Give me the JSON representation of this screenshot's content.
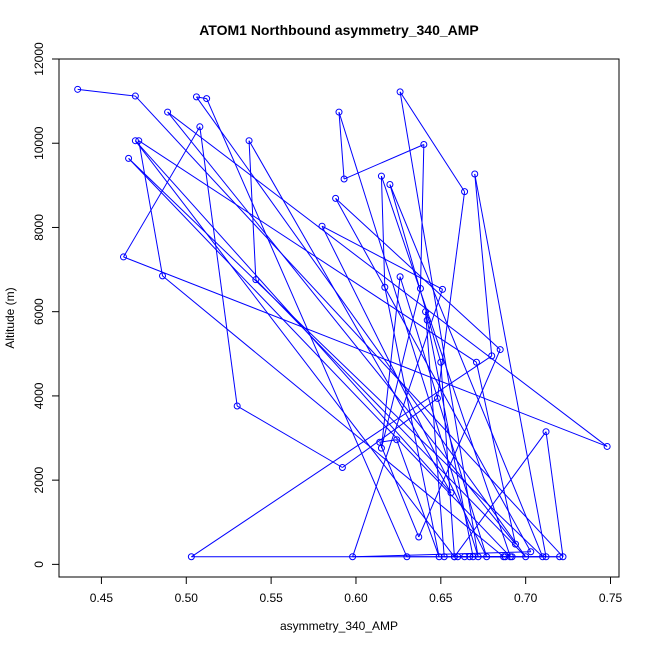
{
  "chart_data": {
    "type": "line",
    "title": "ATOM1 Northbound asymmetry_340_AMP",
    "xlabel": "asymmetry_340_AMP",
    "ylabel": "Altitude (m)",
    "xlim": [
      0.425,
      0.755
    ],
    "ylim": [
      -300,
      12000
    ],
    "xticks": [
      0.45,
      0.5,
      0.55,
      0.6,
      0.65,
      0.7,
      0.75
    ],
    "yticks": [
      0,
      2000,
      4000,
      6000,
      8000,
      10000,
      12000
    ],
    "grid": false,
    "legend": "none",
    "series": [
      {
        "color": "#0000ff",
        "marker": "open-circle",
        "x": [
          0.436,
          0.47,
          0.722,
          0.712,
          0.658,
          0.47,
          0.656,
          0.537,
          0.541,
          0.7,
          0.506,
          0.512,
          0.63,
          0.687,
          0.486,
          0.472,
          0.671,
          0.694,
          0.489,
          0.748,
          0.463,
          0.508,
          0.53,
          0.592,
          0.648,
          0.664,
          0.626,
          0.672,
          0.59,
          0.593,
          0.64,
          0.638,
          0.615,
          0.626,
          0.677,
          0.58,
          0.651,
          0.598,
          0.703,
          0.588,
          0.685,
          0.637,
          0.614,
          0.624,
          0.649,
          0.617,
          0.615,
          0.691,
          0.466,
          0.71,
          0.62,
          0.65,
          0.658,
          0.667,
          0.692,
          0.652,
          0.641,
          0.642,
          0.669,
          0.688,
          0.503,
          0.68,
          0.67,
          0.712,
          0.66,
          0.72,
          0.664
        ],
        "y": [
          11280,
          11120,
          180,
          3150,
          180,
          10060,
          1700,
          10060,
          6760,
          180,
          11100,
          11060,
          180,
          180,
          6850,
          10060,
          4800,
          480,
          10740,
          2800,
          7300,
          10390,
          3760,
          2300,
          3940,
          8850,
          11220,
          180,
          10740,
          9150,
          9970,
          6550,
          2760,
          6830,
          180,
          8030,
          6530,
          180,
          300,
          8690,
          5100,
          650,
          2900,
          2960,
          180,
          6580,
          9220,
          180,
          9640,
          180,
          9020,
          4800,
          180,
          180,
          180,
          180,
          6000,
          5800,
          180,
          180,
          180,
          4950,
          9270,
          180,
          180,
          180,
          180
        ]
      }
    ]
  }
}
